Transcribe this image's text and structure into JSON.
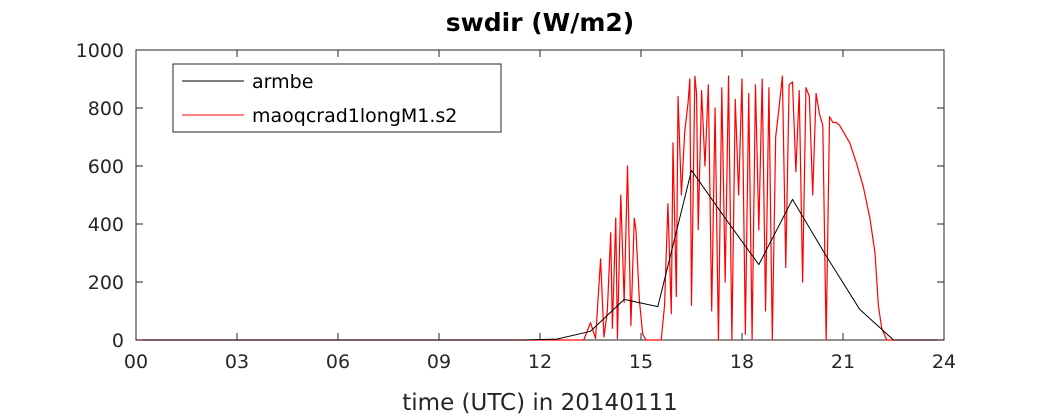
{
  "chart_data": {
    "type": "line",
    "title": "swdir  (W/m2)",
    "xlabel": "time (UTC) in 20140111",
    "ylabel": "",
    "xlim": [
      0,
      24
    ],
    "ylim": [
      0,
      1000
    ],
    "xticks": [
      0,
      3,
      6,
      9,
      12,
      15,
      18,
      21,
      24
    ],
    "xtick_labels": [
      "00",
      "03",
      "06",
      "09",
      "12",
      "15",
      "18",
      "21",
      "24"
    ],
    "yticks": [
      0,
      200,
      400,
      600,
      800,
      1000
    ],
    "ytick_labels": [
      "0",
      "200",
      "400",
      "600",
      "800",
      "1000"
    ],
    "grid": false,
    "legend_position": "top-left",
    "series": [
      {
        "name": "armbe",
        "color": "#000000",
        "x": [
          0,
          11.5,
          12.5,
          13.5,
          14.5,
          15.5,
          16.5,
          17.5,
          18.5,
          19.5,
          20.5,
          21.5,
          22.5,
          24
        ],
        "y": [
          0,
          0,
          3,
          30,
          140,
          115,
          585,
          420,
          260,
          485,
          290,
          105,
          0,
          0
        ]
      },
      {
        "name": "maoqcrad1longM1.s2",
        "color": "#ff0000",
        "x": [
          0,
          11.5,
          12.5,
          13.3,
          13.5,
          13.65,
          13.8,
          13.9,
          14.0,
          14.1,
          14.15,
          14.25,
          14.3,
          14.4,
          14.5,
          14.6,
          14.7,
          14.8,
          14.85,
          14.95,
          15.05,
          15.15,
          15.3,
          15.45,
          15.6,
          15.7,
          15.8,
          15.9,
          15.95,
          16.05,
          16.1,
          16.2,
          16.3,
          16.4,
          16.45,
          16.5,
          16.6,
          16.65,
          16.7,
          16.8,
          16.9,
          17.0,
          17.1,
          17.2,
          17.3,
          17.4,
          17.5,
          17.6,
          17.7,
          17.8,
          17.9,
          18.0,
          18.1,
          18.2,
          18.3,
          18.4,
          18.5,
          18.6,
          18.7,
          18.8,
          18.9,
          19.0,
          19.1,
          19.2,
          19.3,
          19.4,
          19.5,
          19.6,
          19.7,
          19.8,
          19.9,
          20.0,
          20.1,
          20.2,
          20.3,
          20.4,
          20.5,
          20.6,
          20.7,
          20.8,
          20.9,
          21.0,
          21.2,
          21.4,
          21.6,
          21.8,
          21.95,
          22.05,
          22.15,
          22.3,
          22.5,
          24
        ],
        "y": [
          0,
          0,
          0,
          0,
          60,
          5,
          280,
          10,
          100,
          370,
          40,
          420,
          5,
          500,
          130,
          600,
          50,
          420,
          380,
          140,
          20,
          0,
          0,
          0,
          0,
          120,
          470,
          90,
          680,
          150,
          840,
          500,
          720,
          820,
          900,
          120,
          910,
          850,
          380,
          860,
          600,
          880,
          100,
          800,
          0,
          870,
          200,
          910,
          0,
          830,
          500,
          900,
          20,
          850,
          0,
          880,
          380,
          900,
          100,
          870,
          0,
          700,
          800,
          910,
          250,
          880,
          890,
          580,
          860,
          200,
          870,
          840,
          500,
          850,
          780,
          740,
          0,
          770,
          750,
          750,
          740,
          720,
          680,
          610,
          530,
          420,
          300,
          120,
          40,
          0,
          0,
          0
        ]
      }
    ]
  }
}
